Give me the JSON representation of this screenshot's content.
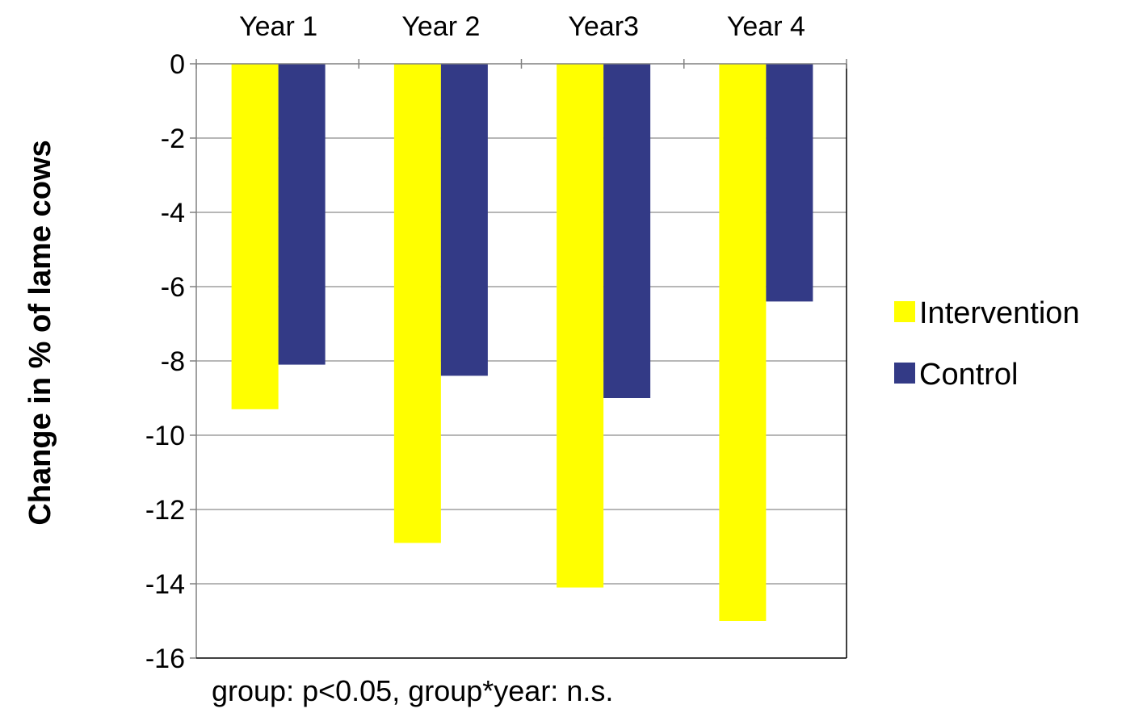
{
  "chart_data": {
    "type": "bar",
    "categories": [
      "Year 1",
      "Year 2",
      "Year3",
      "Year 4"
    ],
    "series": [
      {
        "name": "Intervention",
        "color": "#FFFF00",
        "values": [
          -9.3,
          -12.9,
          -14.1,
          -15.0
        ]
      },
      {
        "name": "Control",
        "color": "#333A86",
        "values": [
          -8.1,
          -8.4,
          -9.0,
          -6.4
        ]
      }
    ],
    "ylabel": "Change in % of lame cows",
    "ylim": [
      -16,
      0
    ],
    "yticks": [
      "0",
      "-2",
      "-4",
      "-6",
      "-8",
      "-10",
      "-12",
      "-14",
      "-16"
    ],
    "grid": true,
    "x_axis_position": "top",
    "legend_position": "right",
    "annotation": "group: p<0.05, group*year: n.s."
  }
}
